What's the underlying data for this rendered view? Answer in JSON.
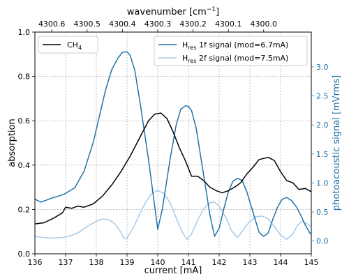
{
  "chart_data": {
    "type": "line",
    "xlabel": "current [mA]",
    "x_ticks": [
      136,
      137,
      138,
      139,
      140,
      141,
      142,
      143,
      144,
      145
    ],
    "xlim": [
      136,
      145
    ],
    "top_axis": {
      "label": "wavenumber [cm⁻¹]",
      "label_base": "wavenumber [cm",
      "label_sup": "−1",
      "label_close": "]",
      "ticks": [
        {
          "label": "4300.6",
          "current": 136.55
        },
        {
          "label": "4300.5",
          "current": 137.7
        },
        {
          "label": "4300.4",
          "current": 138.85
        },
        {
          "label": "4300.3",
          "current": 140.0
        },
        {
          "label": "4300.2",
          "current": 141.15
        },
        {
          "label": "4300.1",
          "current": 142.3
        },
        {
          "label": "4300.0",
          "current": 143.45
        }
      ]
    },
    "ylabel_left": "absorption",
    "ylim_left": [
      0.0,
      1.0
    ],
    "y_ticks_left": [
      "0.0",
      "0.2",
      "0.4",
      "0.6",
      "0.8",
      "1.0"
    ],
    "ylabel_right": "photoacoustic signal [mVrms]",
    "ylim_right": [
      -0.22,
      3.6
    ],
    "y_ticks_right": [
      "0.0",
      "0.5",
      "1.0",
      "1.5",
      "2.0",
      "2.5",
      "3.0"
    ],
    "grid": true,
    "legends": {
      "left": "top-left",
      "right": "top-right"
    },
    "series": [
      {
        "name": "CH4",
        "name_base": "CH",
        "name_sub": "4",
        "axis": "left",
        "color": "#000000",
        "x": [
          136.0,
          136.3,
          136.6,
          136.9,
          137.0,
          137.2,
          137.4,
          137.6,
          137.9,
          138.2,
          138.5,
          138.8,
          139.1,
          139.4,
          139.7,
          139.9,
          140.1,
          140.3,
          140.5,
          140.7,
          140.9,
          141.1,
          141.3,
          141.5,
          141.7,
          141.9,
          142.1,
          142.3,
          142.5,
          142.7,
          142.9,
          143.1,
          143.3,
          143.6,
          143.8,
          144.0,
          144.2,
          144.4,
          144.6,
          144.8,
          145.0
        ],
        "y": [
          0.135,
          0.14,
          0.16,
          0.185,
          0.21,
          0.205,
          0.215,
          0.21,
          0.225,
          0.26,
          0.31,
          0.37,
          0.44,
          0.52,
          0.6,
          0.63,
          0.635,
          0.61,
          0.55,
          0.48,
          0.42,
          0.35,
          0.35,
          0.33,
          0.3,
          0.285,
          0.275,
          0.285,
          0.3,
          0.32,
          0.36,
          0.39,
          0.425,
          0.435,
          0.42,
          0.37,
          0.33,
          0.32,
          0.29,
          0.295,
          0.28
        ]
      },
      {
        "name": "Hres 1f signal (mod=6.7mA)",
        "name_base": "H",
        "name_sub": "res",
        "name_rest": " 1f signal (mod=6.7mA)",
        "axis": "right",
        "color": "#2172a8",
        "x": [
          136.0,
          136.2,
          136.5,
          136.8,
          137.0,
          137.3,
          137.6,
          137.9,
          138.1,
          138.3,
          138.5,
          138.7,
          138.85,
          139.0,
          139.1,
          139.25,
          139.45,
          139.7,
          139.9,
          140.0,
          140.15,
          140.4,
          140.6,
          140.75,
          140.9,
          141.0,
          141.1,
          141.25,
          141.4,
          141.55,
          141.7,
          141.85,
          142.0,
          142.15,
          142.3,
          142.45,
          142.6,
          142.75,
          142.9,
          143.1,
          143.3,
          143.45,
          143.6,
          143.75,
          143.9,
          144.05,
          144.2,
          144.35,
          144.5,
          144.65,
          144.8,
          144.95,
          145.0
        ],
        "y": [
          0.72,
          0.67,
          0.73,
          0.78,
          0.82,
          0.92,
          1.2,
          1.7,
          2.15,
          2.6,
          2.95,
          3.15,
          3.25,
          3.26,
          3.2,
          2.95,
          2.3,
          1.4,
          0.6,
          0.2,
          0.55,
          1.4,
          2.0,
          2.27,
          2.33,
          2.32,
          2.25,
          1.95,
          1.45,
          0.95,
          0.45,
          0.08,
          0.22,
          0.55,
          0.85,
          1.03,
          1.08,
          1.04,
          0.85,
          0.5,
          0.15,
          0.08,
          0.14,
          0.38,
          0.58,
          0.72,
          0.75,
          0.7,
          0.6,
          0.45,
          0.28,
          0.14,
          0.12
        ]
      },
      {
        "name": "Hres 2f signal (mod=7.5mA)",
        "name_base": "H",
        "name_sub": "res",
        "name_rest": " 2f signal (mod=7.5mA)",
        "axis": "right",
        "color": "#a9c9e6",
        "x": [
          136.0,
          136.3,
          136.6,
          136.9,
          137.1,
          137.4,
          137.7,
          138.0,
          138.2,
          138.4,
          138.6,
          138.8,
          138.9,
          139.0,
          139.2,
          139.4,
          139.6,
          139.8,
          140.0,
          140.2,
          140.4,
          140.6,
          140.8,
          140.95,
          141.1,
          141.3,
          141.5,
          141.7,
          141.85,
          142.0,
          142.2,
          142.4,
          142.6,
          142.8,
          142.9,
          143.0,
          143.2,
          143.4,
          143.6,
          143.8,
          144.0,
          144.2,
          144.4,
          144.55,
          144.7,
          144.85,
          145.0
        ],
        "y": [
          0.08,
          0.06,
          0.05,
          0.06,
          0.08,
          0.14,
          0.25,
          0.34,
          0.38,
          0.37,
          0.3,
          0.15,
          0.04,
          0.05,
          0.22,
          0.45,
          0.66,
          0.82,
          0.87,
          0.82,
          0.66,
          0.4,
          0.15,
          0.03,
          0.12,
          0.36,
          0.56,
          0.66,
          0.67,
          0.6,
          0.42,
          0.18,
          0.06,
          0.2,
          0.28,
          0.33,
          0.42,
          0.43,
          0.38,
          0.25,
          0.1,
          0.03,
          0.12,
          0.27,
          0.34,
          0.3,
          0.25
        ]
      }
    ]
  }
}
